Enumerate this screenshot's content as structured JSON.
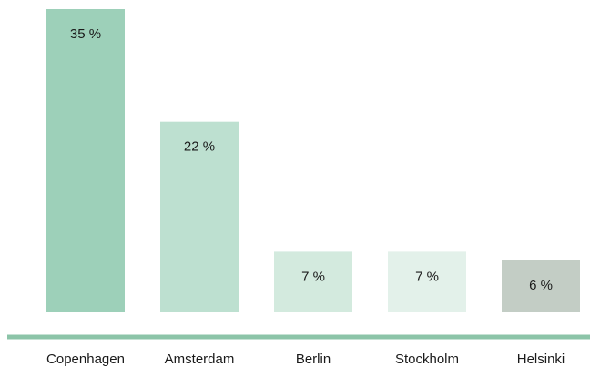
{
  "chart_data": {
    "type": "bar",
    "categories": [
      "Copenhagen",
      "Amsterdam",
      "Berlin",
      "Stockholm",
      "Helsinki"
    ],
    "values": [
      35,
      22,
      7,
      7,
      6
    ],
    "value_labels": [
      "35 %",
      "22 %",
      "7 %",
      "7 %",
      "6 %"
    ],
    "colors": [
      "#9dd0b9",
      "#bde0d0",
      "#d3eade",
      "#e3f1ea",
      "#c3cdc5"
    ],
    "ylim": [
      0,
      35
    ]
  }
}
